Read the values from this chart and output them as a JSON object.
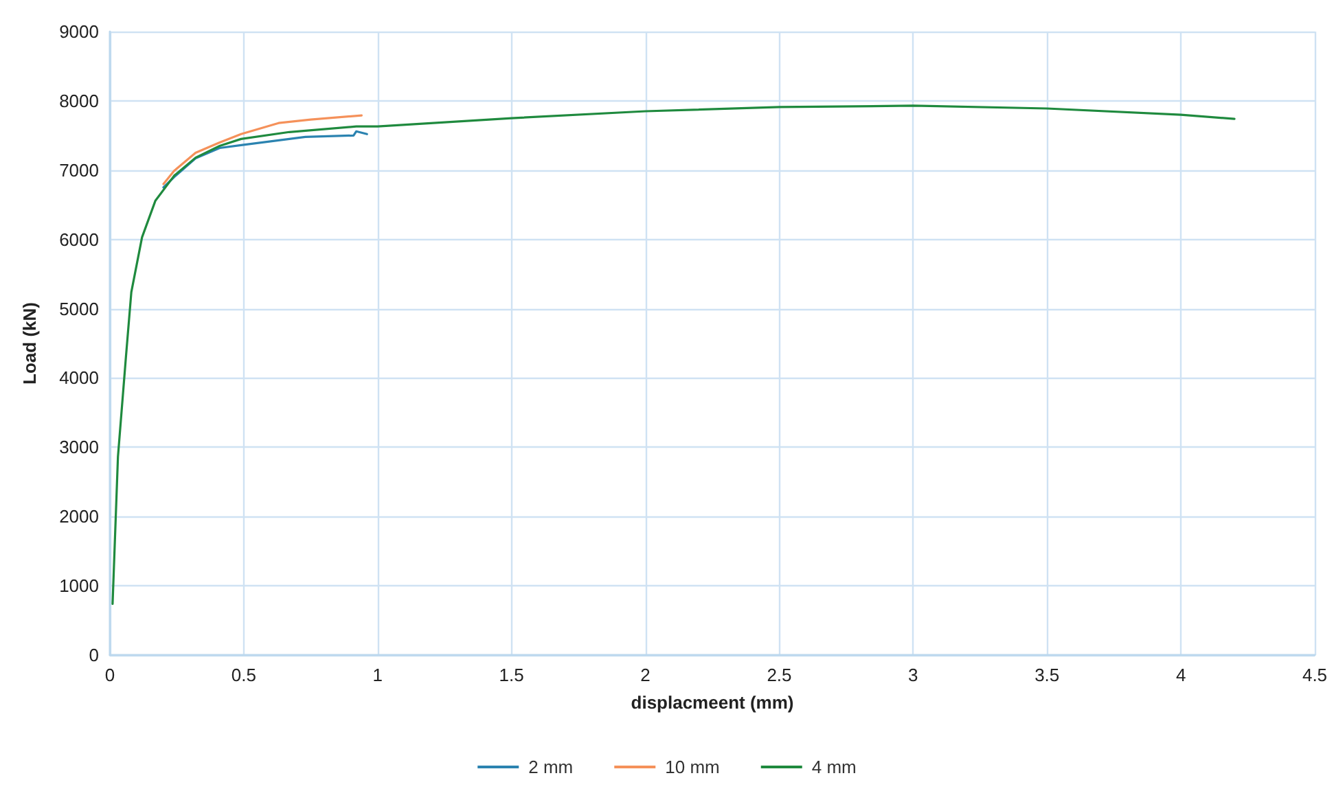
{
  "chart_data": {
    "type": "line",
    "xlabel": "displacmeent (mm)",
    "ylabel": "Load (kN)",
    "xlim": [
      0,
      4.5
    ],
    "xticks": [
      0,
      0.5,
      1,
      1.5,
      2,
      2.5,
      3,
      3.5,
      4,
      4.5
    ],
    "ylim": [
      0,
      9000
    ],
    "yticks": [
      0,
      1000,
      2000,
      3000,
      4000,
      5000,
      6000,
      7000,
      8000,
      9000
    ],
    "grid": true,
    "legend": "bottom",
    "marker": "none",
    "line_style": "solid",
    "series": [
      {
        "name": "2 mm",
        "color": "#2b83b0",
        "x": [
          0.2,
          0.24,
          0.32,
          0.41,
          0.49,
          0.67,
          0.73,
          0.91,
          0.92,
          0.96
        ],
        "values": [
          6750,
          6900,
          7170,
          7320,
          7360,
          7450,
          7480,
          7500,
          7560,
          7520
        ]
      },
      {
        "name": "10 mm",
        "color": "#f5915a",
        "x": [
          0.2,
          0.24,
          0.32,
          0.41,
          0.49,
          0.63,
          0.75,
          0.94
        ],
        "values": [
          6800,
          6990,
          7250,
          7400,
          7520,
          7680,
          7730,
          7790
        ]
      },
      {
        "name": "4 mm",
        "color": "#1f8a3e",
        "x": [
          0.01,
          0.03,
          0.06,
          0.08,
          0.12,
          0.17,
          0.24,
          0.32,
          0.41,
          0.49,
          0.67,
          0.92,
          1,
          1.5,
          2,
          2.5,
          3,
          3.5,
          4,
          4.2
        ],
        "values": [
          740,
          2860,
          4310,
          5240,
          6030,
          6560,
          6920,
          7180,
          7350,
          7450,
          7550,
          7630,
          7630,
          7750,
          7850,
          7910,
          7930,
          7890,
          7800,
          7740
        ]
      }
    ]
  }
}
